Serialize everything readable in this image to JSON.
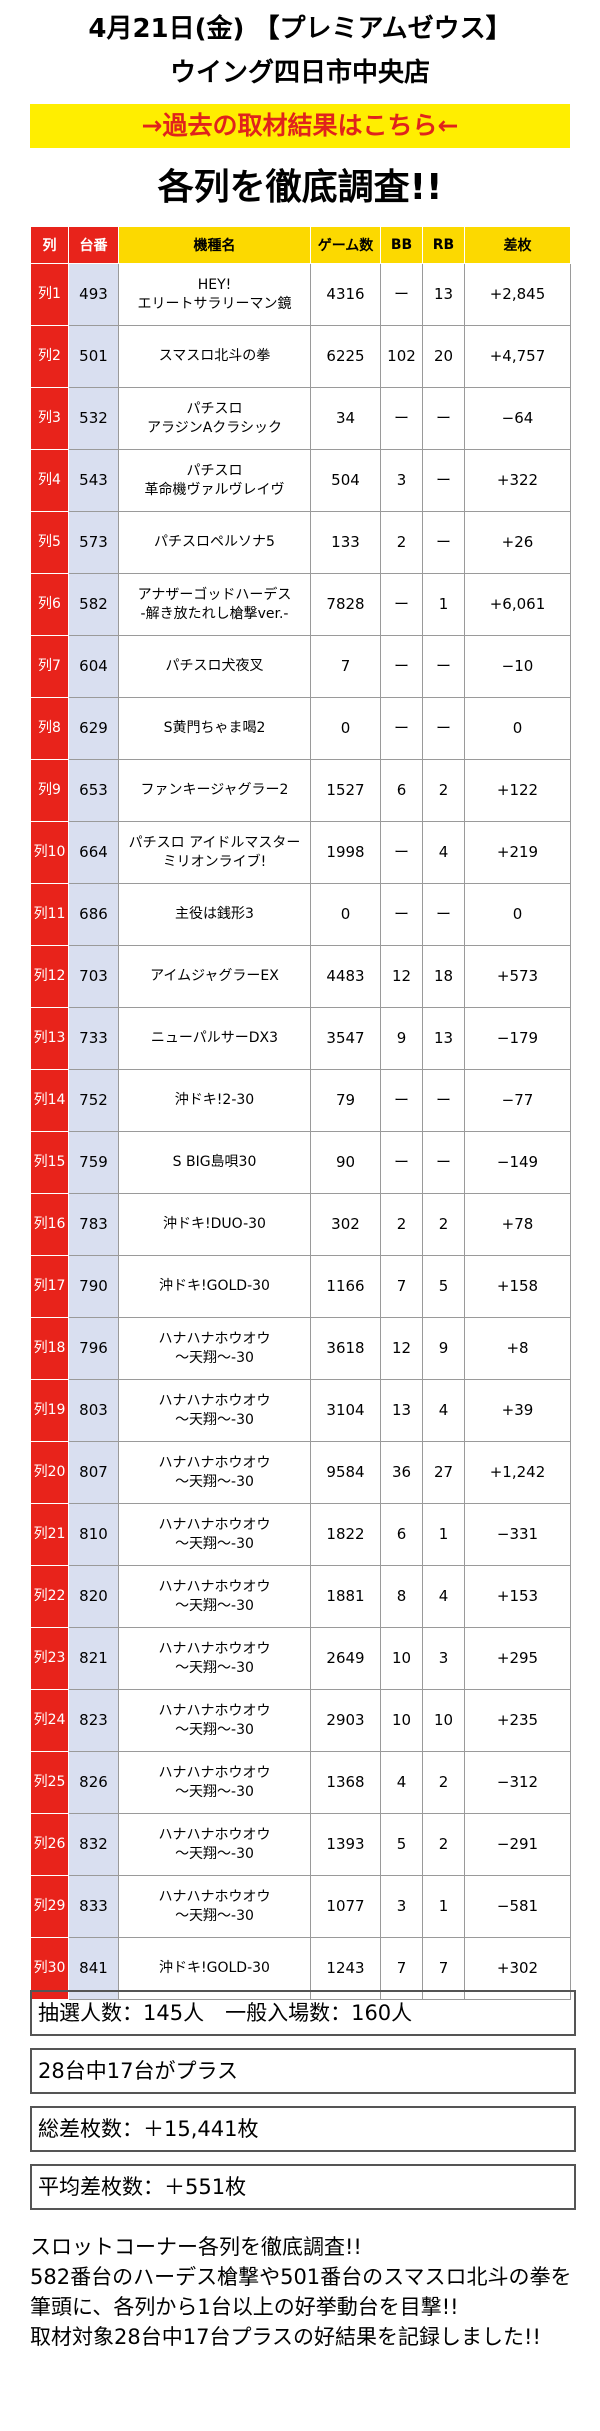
{
  "header": {
    "line1": "4月21日(金) 【プレミアムゼウス】",
    "line2": "ウイング四日市中央店"
  },
  "banner": {
    "label": "→過去の取材結果はこちら←"
  },
  "section_title": "各列を徹底調査!!",
  "table": {
    "columns": [
      "列",
      "台番",
      "機種名",
      "ゲーム数",
      "BB",
      "RB",
      "差枚"
    ],
    "rows": [
      {
        "retsu": "列1",
        "dai": "493",
        "name": [
          "HEY!",
          "エリートサラリーマン鏡"
        ],
        "games": "4316",
        "bb": "ー",
        "rb": "13",
        "diff": "+2,845"
      },
      {
        "retsu": "列2",
        "dai": "501",
        "name": [
          "スマスロ北斗の拳"
        ],
        "games": "6225",
        "bb": "102",
        "rb": "20",
        "diff": "+4,757"
      },
      {
        "retsu": "列3",
        "dai": "532",
        "name": [
          "パチスロ",
          "アラジンAクラシック"
        ],
        "games": "34",
        "bb": "ー",
        "rb": "ー",
        "diff": "−64"
      },
      {
        "retsu": "列4",
        "dai": "543",
        "name": [
          "パチスロ",
          "革命機ヴァルヴレイヴ"
        ],
        "games": "504",
        "bb": "3",
        "rb": "ー",
        "diff": "+322"
      },
      {
        "retsu": "列5",
        "dai": "573",
        "name": [
          "パチスロペルソナ5"
        ],
        "games": "133",
        "bb": "2",
        "rb": "ー",
        "diff": "+26"
      },
      {
        "retsu": "列6",
        "dai": "582",
        "name": [
          "アナザーゴッドハーデス",
          "-解き放たれし槍撃ver.-"
        ],
        "games": "7828",
        "bb": "ー",
        "rb": "1",
        "diff": "+6,061"
      },
      {
        "retsu": "列7",
        "dai": "604",
        "name": [
          "パチスロ犬夜叉"
        ],
        "games": "7",
        "bb": "ー",
        "rb": "ー",
        "diff": "−10"
      },
      {
        "retsu": "列8",
        "dai": "629",
        "name": [
          "S黄門ちゃま喝2"
        ],
        "games": "0",
        "bb": "ー",
        "rb": "ー",
        "diff": "0"
      },
      {
        "retsu": "列9",
        "dai": "653",
        "name": [
          "ファンキージャグラー2"
        ],
        "games": "1527",
        "bb": "6",
        "rb": "2",
        "diff": "+122"
      },
      {
        "retsu": "列10",
        "dai": "664",
        "name": [
          "パチスロ アイドルマスター",
          "ミリオンライブ!"
        ],
        "games": "1998",
        "bb": "ー",
        "rb": "4",
        "diff": "+219"
      },
      {
        "retsu": "列11",
        "dai": "686",
        "name": [
          "主役は銭形3"
        ],
        "games": "0",
        "bb": "ー",
        "rb": "ー",
        "diff": "0"
      },
      {
        "retsu": "列12",
        "dai": "703",
        "name": [
          "アイムジャグラーEX"
        ],
        "games": "4483",
        "bb": "12",
        "rb": "18",
        "diff": "+573"
      },
      {
        "retsu": "列13",
        "dai": "733",
        "name": [
          "ニューパルサーDX3"
        ],
        "games": "3547",
        "bb": "9",
        "rb": "13",
        "diff": "−179"
      },
      {
        "retsu": "列14",
        "dai": "752",
        "name": [
          "沖ドキ!2-30"
        ],
        "games": "79",
        "bb": "ー",
        "rb": "ー",
        "diff": "−77"
      },
      {
        "retsu": "列15",
        "dai": "759",
        "name": [
          "S BIG島唄30"
        ],
        "games": "90",
        "bb": "ー",
        "rb": "ー",
        "diff": "−149"
      },
      {
        "retsu": "列16",
        "dai": "783",
        "name": [
          "沖ドキ!DUO-30"
        ],
        "games": "302",
        "bb": "2",
        "rb": "2",
        "diff": "+78"
      },
      {
        "retsu": "列17",
        "dai": "790",
        "name": [
          "沖ドキ!GOLD-30"
        ],
        "games": "1166",
        "bb": "7",
        "rb": "5",
        "diff": "+158"
      },
      {
        "retsu": "列18",
        "dai": "796",
        "name": [
          "ハナハナホウオウ",
          "〜天翔〜-30"
        ],
        "games": "3618",
        "bb": "12",
        "rb": "9",
        "diff": "+8"
      },
      {
        "retsu": "列19",
        "dai": "803",
        "name": [
          "ハナハナホウオウ",
          "〜天翔〜-30"
        ],
        "games": "3104",
        "bb": "13",
        "rb": "4",
        "diff": "+39"
      },
      {
        "retsu": "列20",
        "dai": "807",
        "name": [
          "ハナハナホウオウ",
          "〜天翔〜-30"
        ],
        "games": "9584",
        "bb": "36",
        "rb": "27",
        "diff": "+1,242"
      },
      {
        "retsu": "列21",
        "dai": "810",
        "name": [
          "ハナハナホウオウ",
          "〜天翔〜-30"
        ],
        "games": "1822",
        "bb": "6",
        "rb": "1",
        "diff": "−331"
      },
      {
        "retsu": "列22",
        "dai": "820",
        "name": [
          "ハナハナホウオウ",
          "〜天翔〜-30"
        ],
        "games": "1881",
        "bb": "8",
        "rb": "4",
        "diff": "+153"
      },
      {
        "retsu": "列23",
        "dai": "821",
        "name": [
          "ハナハナホウオウ",
          "〜天翔〜-30"
        ],
        "games": "2649",
        "bb": "10",
        "rb": "3",
        "diff": "+295"
      },
      {
        "retsu": "列24",
        "dai": "823",
        "name": [
          "ハナハナホウオウ",
          "〜天翔〜-30"
        ],
        "games": "2903",
        "bb": "10",
        "rb": "10",
        "diff": "+235"
      },
      {
        "retsu": "列25",
        "dai": "826",
        "name": [
          "ハナハナホウオウ",
          "〜天翔〜-30"
        ],
        "games": "1368",
        "bb": "4",
        "rb": "2",
        "diff": "−312"
      },
      {
        "retsu": "列26",
        "dai": "832",
        "name": [
          "ハナハナホウオウ",
          "〜天翔〜-30"
        ],
        "games": "1393",
        "bb": "5",
        "rb": "2",
        "diff": "−291"
      },
      {
        "retsu": "列29",
        "dai": "833",
        "name": [
          "ハナハナホウオウ",
          "〜天翔〜-30"
        ],
        "games": "1077",
        "bb": "3",
        "rb": "1",
        "diff": "−581"
      },
      {
        "retsu": "列30",
        "dai": "841",
        "name": [
          "沖ドキ!GOLD-30"
        ],
        "games": "1243",
        "bb": "7",
        "rb": "7",
        "diff": "+302"
      }
    ]
  },
  "stats": {
    "attendance": "抽選人数：145人　一般入場数：160人",
    "plus_count": "28台中17台がプラス",
    "total_diff": "総差枚数：＋15,441枚",
    "avg_diff": "平均差枚数：＋551枚"
  },
  "summary": [
    "スロットコーナー各列を徹底調査!!",
    "582番台のハーデス槍撃や501番台のスマスロ北斗の拳を筆頭に、各列から1台以上の好挙動台を目撃!!",
    "取材対象28台中17台プラスの好結果を記録しました!!"
  ]
}
